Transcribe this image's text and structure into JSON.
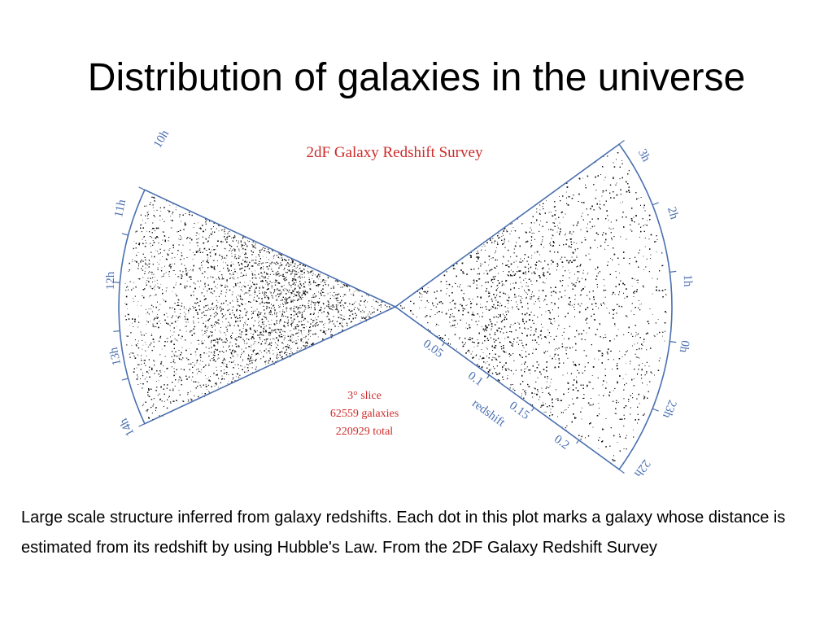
{
  "slide": {
    "title": "Distribution of galaxies in the universe",
    "caption": "Large scale structure inferred from galaxy redshifts. Each dot in this plot marks a galaxy whose distance is estimated from its redshift by using Hubble's Law. From the 2DF Galaxy Redshift Survey"
  },
  "figure": {
    "title": "2dF Galaxy Redshift Survey",
    "info_lines": [
      "3° slice",
      "62559 galaxies",
      "220929 total"
    ],
    "left_ra_labels": [
      "10h",
      "11h",
      "12h",
      "13h",
      "14h"
    ],
    "right_ra_labels": [
      "3h",
      "2h",
      "1h",
      "0h",
      "23h",
      "22h"
    ],
    "redshift_ticks": [
      "0.05",
      "0.1",
      "0.15",
      "0.2"
    ],
    "redshift_label": "redshift",
    "colors": {
      "title_red": "#cc2a2a",
      "frame_blue": "#4a6fb0",
      "dots": "#111111"
    }
  }
}
